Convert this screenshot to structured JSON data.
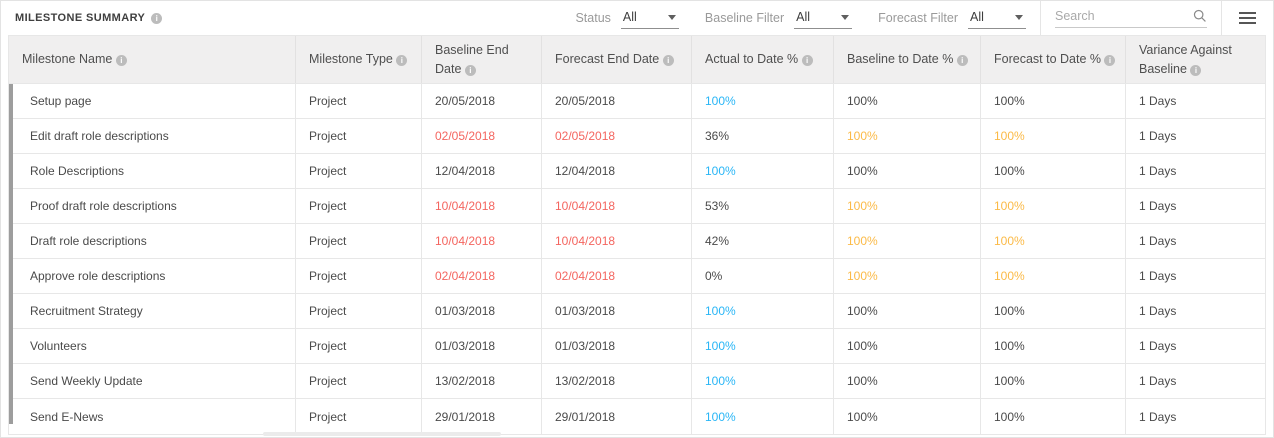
{
  "header": {
    "title": "MILESTONE SUMMARY",
    "filters": [
      {
        "label": "Status",
        "value": "All"
      },
      {
        "label": "Baseline Filter",
        "value": "All"
      },
      {
        "label": "Forecast Filter",
        "value": "All"
      }
    ],
    "search": {
      "placeholder": "Search"
    }
  },
  "icons": {
    "info": "i",
    "search": "magnifier",
    "menu": "hamburger",
    "caret": "chevron-down"
  },
  "colors": {
    "late_red": "#f4655f",
    "complete_blue": "#29b6f6",
    "warning_orange": "#fbba47",
    "header_bg": "#f0efef",
    "border": "#e7e7e7"
  },
  "table": {
    "columns": [
      {
        "label": "Milestone Name",
        "key": "milestone-name"
      },
      {
        "label": "Milestone Type",
        "key": "milestone-type"
      },
      {
        "label": "Baseline End Date",
        "key": "baseline-end-date"
      },
      {
        "label": "Forecast End Date",
        "key": "forecast-end-date"
      },
      {
        "label": "Actual to Date %",
        "key": "actual-to-date-pct"
      },
      {
        "label": "Baseline to Date %",
        "key": "baseline-to-date-pct"
      },
      {
        "label": "Forecast to Date %",
        "key": "forecast-to-date-pct"
      },
      {
        "label": "Variance Against Baseline",
        "key": "variance-against-baseline"
      }
    ],
    "rows": [
      {
        "cells": [
          "Setup page",
          "Project",
          "20/05/2018",
          "20/05/2018",
          "100%",
          "100%",
          "100%",
          "1 Days"
        ],
        "styles": [
          "",
          "",
          "",
          "",
          "blue",
          "",
          "",
          ""
        ]
      },
      {
        "cells": [
          "Edit draft role descriptions",
          "Project",
          "02/05/2018",
          "02/05/2018",
          "36%",
          "100%",
          "100%",
          "1 Days"
        ],
        "styles": [
          "",
          "",
          "red",
          "red",
          "",
          "orange",
          "orange",
          ""
        ]
      },
      {
        "cells": [
          "Role Descriptions",
          "Project",
          "12/04/2018",
          "12/04/2018",
          "100%",
          "100%",
          "100%",
          "1 Days"
        ],
        "styles": [
          "",
          "",
          "",
          "",
          "blue",
          "",
          "",
          ""
        ]
      },
      {
        "cells": [
          "Proof draft role descriptions",
          "Project",
          "10/04/2018",
          "10/04/2018",
          "53%",
          "100%",
          "100%",
          "1 Days"
        ],
        "styles": [
          "",
          "",
          "red",
          "red",
          "",
          "orange",
          "orange",
          ""
        ]
      },
      {
        "cells": [
          "Draft role descriptions",
          "Project",
          "10/04/2018",
          "10/04/2018",
          "42%",
          "100%",
          "100%",
          "1 Days"
        ],
        "styles": [
          "",
          "",
          "red",
          "red",
          "",
          "orange",
          "orange",
          ""
        ]
      },
      {
        "cells": [
          "Approve role descriptions",
          "Project",
          "02/04/2018",
          "02/04/2018",
          "0%",
          "100%",
          "100%",
          "1 Days"
        ],
        "styles": [
          "",
          "",
          "red",
          "red",
          "",
          "orange",
          "orange",
          ""
        ]
      },
      {
        "cells": [
          "Recruitment Strategy",
          "Project",
          "01/03/2018",
          "01/03/2018",
          "100%",
          "100%",
          "100%",
          "1 Days"
        ],
        "styles": [
          "",
          "",
          "",
          "",
          "blue",
          "",
          "",
          ""
        ]
      },
      {
        "cells": [
          "Volunteers",
          "Project",
          "01/03/2018",
          "01/03/2018",
          "100%",
          "100%",
          "100%",
          "1 Days"
        ],
        "styles": [
          "",
          "",
          "",
          "",
          "blue",
          "",
          "",
          ""
        ]
      },
      {
        "cells": [
          "Send Weekly Update",
          "Project",
          "13/02/2018",
          "13/02/2018",
          "100%",
          "100%",
          "100%",
          "1 Days"
        ],
        "styles": [
          "",
          "",
          "",
          "",
          "blue",
          "",
          "",
          ""
        ]
      },
      {
        "cells": [
          "Send E-News",
          "Project",
          "29/01/2018",
          "29/01/2018",
          "100%",
          "100%",
          "100%",
          "1 Days"
        ],
        "styles": [
          "",
          "",
          "",
          "",
          "blue",
          "",
          "",
          ""
        ]
      }
    ]
  }
}
